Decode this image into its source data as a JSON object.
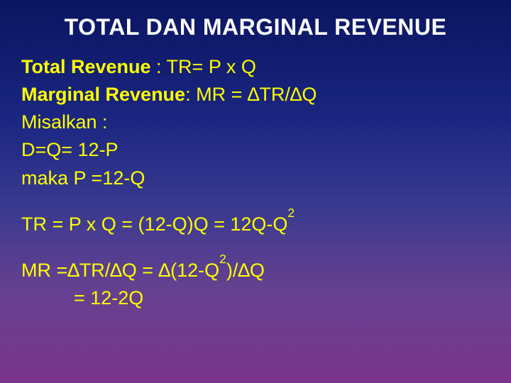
{
  "title": "TOTAL DAN MARGINAL REVENUE",
  "l1a": "Total Revenue ",
  "l1b": ": TR= P x Q",
  "l2a": "Marginal Revenue",
  "l2b": ":  MR =  ∆TR/∆Q",
  "l3": "Misalkan :",
  "l4": "D=Q= 12-P",
  "l5": "maka P =12-Q",
  "l6a": "TR = P x Q = (12-Q)Q = 12Q-Q",
  "l6sup": "2",
  "l7a": "MR =∆TR/∆Q = ∆(12-Q",
  "l7sup": "2",
  "l7b": ")/∆Q",
  "l8": "= 12-2Q"
}
